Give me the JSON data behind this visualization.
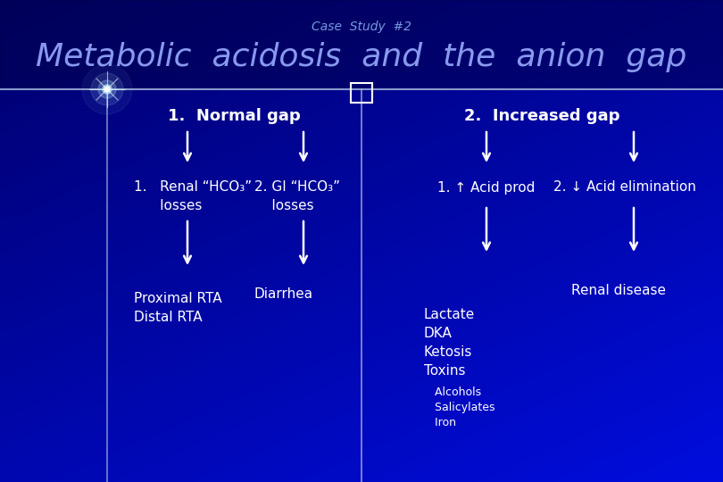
{
  "title_small": "Case  Study  #2",
  "title_large": "Metabolic  acidosis  and  the  anion  gap",
  "title_small_color": "#7799dd",
  "title_large_color": "#8899ee",
  "text_color": "#ffffff",
  "left_header": "1.  Normal gap",
  "right_header": "2.  Increased gap",
  "left_col1_label": "1.   Renal “HCO₃”\n      losses",
  "left_col2_label": "2. GI “HCO₃”\n    losses",
  "left_col1_bottom": "Proximal RTA\nDistal RTA",
  "left_col2_bottom": "Diarrhea",
  "right_col1_label": "1. ↑ Acid prod",
  "right_col2_label": "2. ↓ Acid elimination",
  "right_col1_bottom": "Lactate\nDKA\nKetosis\nToxins",
  "right_col1_sub": "   Alcohols\n   Salicylates\n   Iron",
  "right_col2_bottom": "Renal disease",
  "bg_dark": "#00006a",
  "bg_mid": "#0000aa",
  "bg_bright": "#1a2acc",
  "divider_color": "#8899cc",
  "line_color": "#aabbdd"
}
